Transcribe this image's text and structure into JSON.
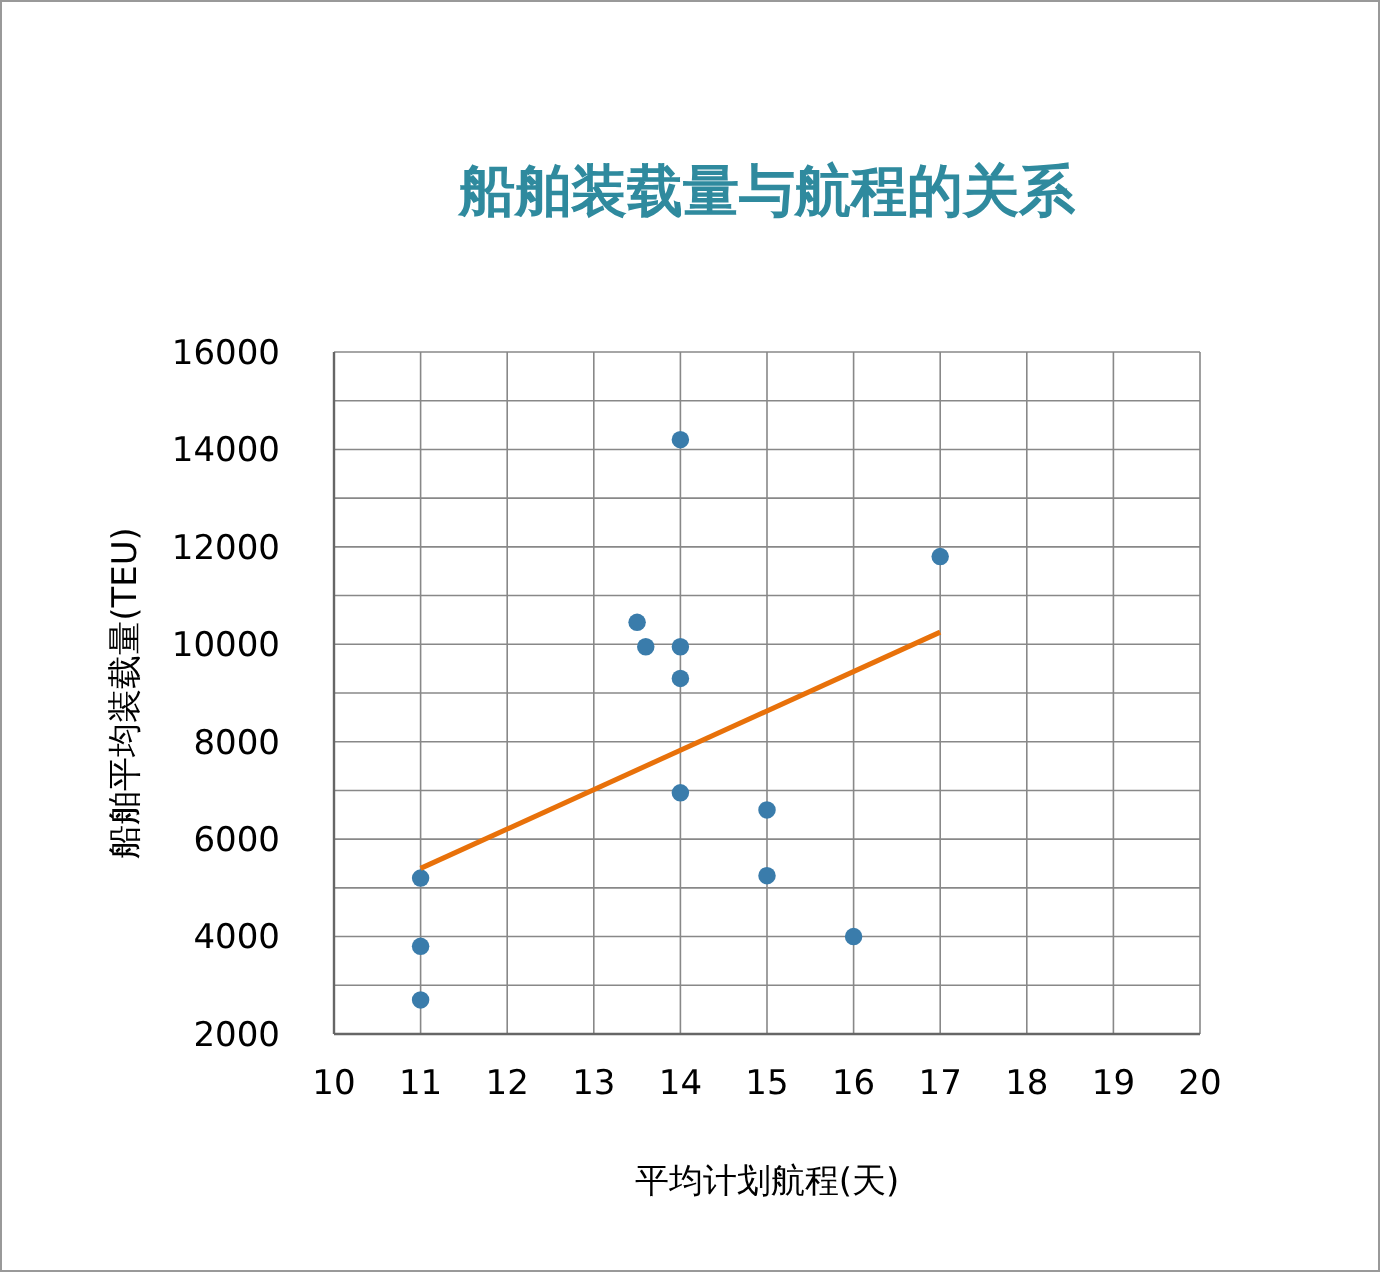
{
  "chart_data": {
    "type": "scatter",
    "title": "船舶装载量与航程的关系",
    "xlabel": "平均计划航程(天)",
    "ylabel": "船舶平均装载量(TEU)",
    "xlim": [
      10,
      20
    ],
    "xticks": [
      10,
      11,
      12,
      13,
      14,
      15,
      16,
      17,
      18,
      19,
      20
    ],
    "ylim": [
      2000,
      16000
    ],
    "yticks": [
      2000,
      {
        "value": 3000,
        "label": null
      },
      4000,
      {
        "value": 5000,
        "label": null
      },
      6000,
      {
        "value": 7000,
        "label": null
      },
      8000,
      {
        "value": 9000,
        "label": null
      },
      10000,
      {
        "value": 11000,
        "label": null
      },
      12000,
      {
        "value": 13000,
        "label": null
      },
      14000,
      {
        "value": 15000,
        "label": null
      },
      16000
    ],
    "grid": true,
    "marker": "circle",
    "series": [
      {
        "color": "#3a7cab",
        "x": [
          11,
          11,
          11,
          13.5,
          13.6,
          14,
          14,
          14,
          14,
          15,
          15,
          16,
          17
        ],
        "values": [
          2700,
          3800,
          5200,
          10450,
          9950,
          9950,
          9300,
          14200,
          6950,
          6600,
          5250,
          4000,
          11800
        ]
      },
      {
        "type": "line",
        "marker": "none",
        "color": "#e8710a",
        "x": [
          11,
          17
        ],
        "values": [
          5400,
          10250
        ]
      }
    ]
  }
}
